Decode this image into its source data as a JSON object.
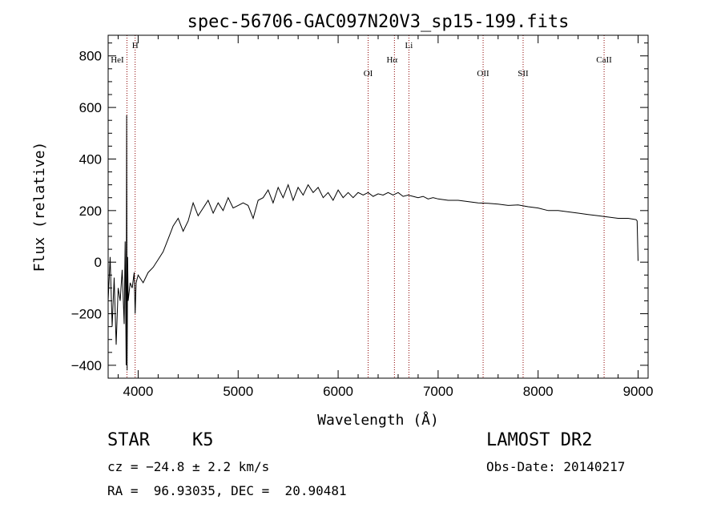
{
  "chart_data": {
    "type": "line",
    "title": "spec-56706-GAC097N20V3_sp15-199.fits",
    "xlabel": "Wavelength (Å)",
    "ylabel": "Flux (relative)",
    "xlim": [
      3700,
      9100
    ],
    "ylim": [
      -450,
      880
    ],
    "x_ticks": [
      4000,
      5000,
      6000,
      7000,
      8000,
      9000
    ],
    "x_tick_labels": [
      "4000",
      "5000",
      "6000",
      "7000",
      "8000",
      "9000"
    ],
    "y_ticks": [
      -400,
      -200,
      0,
      200,
      400,
      600,
      800
    ],
    "y_tick_labels": [
      "−400",
      "−200",
      "0",
      "200",
      "400",
      "600",
      "800"
    ],
    "grid": false,
    "series": [
      {
        "color": "#000000",
        "x": [
          3700,
          3720,
          3740,
          3760,
          3780,
          3800,
          3820,
          3840,
          3860,
          3870,
          3880,
          3885,
          3890,
          3895,
          3900,
          3920,
          3940,
          3960,
          3970,
          3980,
          4000,
          4050,
          4100,
          4150,
          4200,
          4250,
          4300,
          4350,
          4400,
          4450,
          4500,
          4550,
          4600,
          4650,
          4700,
          4750,
          4800,
          4850,
          4900,
          4950,
          5000,
          5050,
          5100,
          5150,
          5200,
          5250,
          5300,
          5350,
          5400,
          5450,
          5500,
          5550,
          5600,
          5650,
          5700,
          5750,
          5800,
          5850,
          5900,
          5950,
          6000,
          6050,
          6100,
          6150,
          6200,
          6250,
          6300,
          6350,
          6400,
          6450,
          6500,
          6550,
          6600,
          6650,
          6700,
          6750,
          6800,
          6850,
          6900,
          6950,
          7000,
          7100,
          7200,
          7300,
          7400,
          7500,
          7600,
          7700,
          7800,
          7900,
          8000,
          8100,
          8200,
          8300,
          8400,
          8500,
          8600,
          8700,
          8800,
          8900,
          8980,
          8990,
          9000
        ],
        "y": [
          -150,
          20,
          -250,
          -60,
          -320,
          -100,
          -150,
          -30,
          -240,
          80,
          -400,
          570,
          -420,
          20,
          -150,
          -80,
          -100,
          -40,
          -200,
          -80,
          -50,
          -80,
          -40,
          -20,
          10,
          40,
          90,
          140,
          170,
          120,
          160,
          230,
          180,
          210,
          240,
          190,
          230,
          200,
          250,
          210,
          220,
          230,
          220,
          170,
          240,
          250,
          280,
          230,
          290,
          250,
          300,
          240,
          290,
          260,
          300,
          270,
          290,
          250,
          270,
          240,
          280,
          250,
          270,
          250,
          270,
          260,
          270,
          255,
          265,
          260,
          270,
          260,
          270,
          255,
          260,
          255,
          250,
          255,
          245,
          250,
          245,
          240,
          240,
          235,
          230,
          228,
          225,
          220,
          222,
          215,
          210,
          200,
          200,
          195,
          190,
          185,
          180,
          175,
          170,
          170,
          165,
          160,
          5
        ]
      }
    ],
    "line_markers": [
      {
        "label": "HeI",
        "x": 3888,
        "color": "#8b0000"
      },
      {
        "label": "H",
        "x": 3970,
        "color": "#8b0000"
      },
      {
        "label": "OI",
        "x": 6300,
        "color": "#8b0000"
      },
      {
        "label": "Hα",
        "x": 6563,
        "color": "#8b0000"
      },
      {
        "label": "Li",
        "x": 6708,
        "color": "#8b0000"
      },
      {
        "label": "OII",
        "x": 7450,
        "color": "#8b0000"
      },
      {
        "label": "SII",
        "x": 7850,
        "color": "#8b0000"
      },
      {
        "label": "CaII",
        "x": 8660,
        "color": "#8b0000"
      }
    ]
  },
  "info": {
    "star_type": "STAR    K5",
    "survey": "LAMOST DR2",
    "cz": "cz = −24.8 ± 2.2 km/s",
    "obs_date": "Obs-Date: 20140217",
    "radec": "RA =  96.93035, DEC =  20.90481"
  }
}
